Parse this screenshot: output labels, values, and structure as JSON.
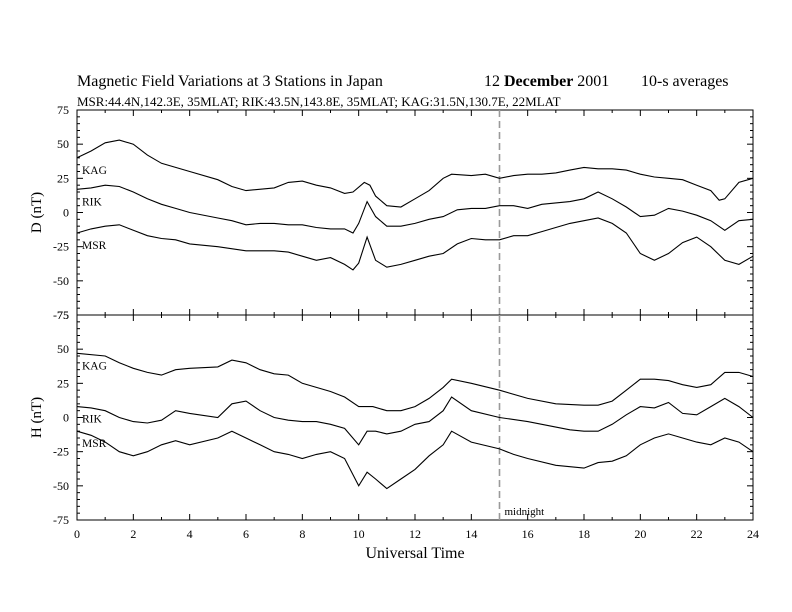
{
  "header": {
    "title": "Magnetic Field Variations at 3 Stations in Japan",
    "date_day": "12",
    "date_month": "December",
    "date_year": "2001",
    "averaging": "10-s averages",
    "subtitle": "MSR:44.4N,142.3E, 35MLAT;   RIK:43.5N,143.8E, 35MLAT;   KAG:31.5N,130.7E, 22MLAT"
  },
  "chart_data": [
    {
      "type": "line",
      "panel": "D",
      "ylabel": "D (nT)",
      "xlabel": "Universal Time",
      "xlim": [
        0,
        24
      ],
      "ylim": [
        -75,
        75
      ],
      "xticks": [
        0,
        2,
        4,
        6,
        8,
        10,
        12,
        14,
        16,
        18,
        20,
        22,
        24
      ],
      "yticks": [
        75,
        50,
        25,
        0,
        -25,
        -50,
        -75
      ],
      "annotation": {
        "x": 15,
        "style": "dashed-vertical"
      },
      "series": [
        {
          "name": "KAG",
          "x": [
            0,
            0.5,
            1,
            1.5,
            2,
            2.5,
            3,
            4,
            5,
            5.5,
            6,
            7,
            7.5,
            8,
            8.5,
            9,
            9.5,
            9.8,
            10.2,
            10.4,
            10.6,
            11,
            11.5,
            12,
            12.5,
            13,
            13.3,
            14,
            14.5,
            15,
            15.5,
            16,
            16.5,
            17,
            17.5,
            18,
            18.5,
            19,
            19.5,
            20,
            20.5,
            21,
            21.5,
            22,
            22.5,
            22.8,
            23,
            23.5,
            24
          ],
          "y": [
            40,
            45,
            51,
            53,
            50,
            42,
            36,
            30,
            24,
            19,
            16,
            18,
            22,
            23,
            20,
            18,
            14,
            15,
            22,
            20,
            12,
            5,
            4,
            10,
            16,
            25,
            28,
            27,
            28,
            25,
            27,
            28,
            28,
            29,
            31,
            33,
            32,
            32,
            31,
            28,
            26,
            25,
            24,
            20,
            16,
            9,
            10,
            22,
            25
          ]
        },
        {
          "name": "RIK",
          "x": [
            0,
            0.5,
            1,
            1.5,
            2,
            2.5,
            3,
            3.5,
            4,
            5,
            5.5,
            6,
            6.5,
            7,
            7.5,
            8,
            8.5,
            9,
            9.5,
            9.8,
            10,
            10.3,
            10.6,
            11,
            11.5,
            12,
            12.5,
            13,
            13.5,
            14,
            14.5,
            15,
            15.5,
            16,
            16.5,
            17,
            17.5,
            18,
            18.5,
            19,
            19.5,
            20,
            20.5,
            21,
            21.5,
            22,
            22.5,
            23,
            23.5,
            24
          ],
          "y": [
            17,
            18,
            20,
            19,
            15,
            10,
            6,
            3,
            0,
            -4,
            -6,
            -9,
            -8,
            -8,
            -9,
            -9,
            -11,
            -12,
            -12,
            -15,
            -8,
            8,
            -3,
            -10,
            -10,
            -8,
            -5,
            -3,
            2,
            3,
            3,
            5,
            5,
            3,
            6,
            7,
            8,
            10,
            15,
            10,
            4,
            -3,
            -2,
            3,
            1,
            -2,
            -6,
            -13,
            -6,
            -5
          ]
        },
        {
          "name": "MSR",
          "x": [
            0,
            0.5,
            1,
            1.5,
            2,
            2.5,
            3,
            3.5,
            4,
            5,
            6,
            7,
            7.5,
            8,
            8.5,
            9,
            9.5,
            9.8,
            10,
            10.3,
            10.6,
            11,
            11.5,
            12,
            12.5,
            13,
            13.5,
            14,
            14.5,
            15,
            15.5,
            16,
            16.5,
            17,
            17.5,
            18,
            18.5,
            19,
            19.5,
            20,
            20.5,
            21,
            21.5,
            22,
            22.5,
            23,
            23.5,
            24
          ],
          "y": [
            -15,
            -12,
            -10,
            -9,
            -13,
            -17,
            -19,
            -20,
            -23,
            -25,
            -28,
            -28,
            -29,
            -32,
            -35,
            -33,
            -38,
            -42,
            -37,
            -18,
            -35,
            -40,
            -38,
            -35,
            -32,
            -30,
            -23,
            -19,
            -20,
            -20,
            -17,
            -17,
            -14,
            -11,
            -8,
            -6,
            -4,
            -8,
            -15,
            -30,
            -35,
            -30,
            -22,
            -18,
            -25,
            -35,
            -38,
            -32
          ]
        }
      ]
    },
    {
      "type": "line",
      "panel": "H",
      "ylabel": "H (nT)",
      "xlabel": "Universal Time",
      "xlim": [
        0,
        24
      ],
      "ylim": [
        -75,
        75
      ],
      "xticks": [
        0,
        2,
        4,
        6,
        8,
        10,
        12,
        14,
        16,
        18,
        20,
        22,
        24
      ],
      "yticks": [
        75,
        50,
        25,
        0,
        -25,
        -50,
        -75
      ],
      "annotation": {
        "x": 15,
        "label": "midnight",
        "style": "dashed-vertical"
      },
      "series": [
        {
          "name": "KAG",
          "x": [
            0,
            1,
            1.5,
            2,
            2.5,
            3,
            3.5,
            4,
            5,
            5.5,
            6,
            6.5,
            7,
            7.5,
            8,
            8.5,
            9,
            9.5,
            10,
            10.5,
            11,
            11.5,
            12,
            12.5,
            13,
            13.3,
            14,
            15,
            16,
            17,
            18,
            18.5,
            19,
            19.5,
            20,
            20.5,
            21,
            21.5,
            22,
            22.5,
            23,
            23.5,
            24
          ],
          "y": [
            47,
            45,
            40,
            36,
            33,
            31,
            35,
            36,
            37,
            42,
            40,
            35,
            32,
            31,
            25,
            22,
            19,
            15,
            8,
            8,
            5,
            5,
            8,
            14,
            22,
            28,
            25,
            20,
            14,
            10,
            9,
            9,
            12,
            20,
            28,
            28,
            27,
            24,
            22,
            24,
            33,
            33,
            30
          ]
        },
        {
          "name": "RIK",
          "x": [
            0,
            0.5,
            1,
            1.5,
            2,
            2.5,
            3,
            3.5,
            4,
            5,
            5.5,
            6,
            6.5,
            7,
            7.5,
            8,
            8.5,
            9,
            9.5,
            10,
            10.3,
            10.6,
            11,
            11.5,
            12,
            12.5,
            13,
            13.3,
            14,
            15,
            16,
            17,
            17.5,
            18,
            18.5,
            19,
            19.5,
            20,
            20.5,
            21,
            21.5,
            22,
            22.5,
            23,
            23.5,
            24
          ],
          "y": [
            8,
            7,
            5,
            0,
            -3,
            -4,
            -2,
            5,
            3,
            0,
            10,
            12,
            5,
            0,
            -2,
            -3,
            -3,
            -5,
            -8,
            -20,
            -10,
            -10,
            -12,
            -10,
            -5,
            -3,
            5,
            15,
            5,
            0,
            -3,
            -7,
            -9,
            -10,
            -10,
            -5,
            2,
            8,
            7,
            11,
            3,
            2,
            8,
            14,
            8,
            0
          ]
        },
        {
          "name": "MSR",
          "x": [
            0,
            0.5,
            1,
            1.5,
            2,
            2.5,
            3,
            3.5,
            4,
            5,
            5.5,
            6,
            6.5,
            7,
            7.5,
            8,
            8.5,
            9,
            9.5,
            10,
            10.3,
            10.6,
            11,
            11.5,
            12,
            12.5,
            13,
            13.3,
            14,
            15,
            15.5,
            16,
            17,
            17.5,
            18,
            18.5,
            19,
            19.5,
            20,
            20.5,
            21,
            21.5,
            22,
            22.5,
            23,
            23.5,
            24
          ],
          "y": [
            -10,
            -13,
            -18,
            -25,
            -28,
            -25,
            -20,
            -17,
            -20,
            -15,
            -10,
            -15,
            -20,
            -25,
            -27,
            -30,
            -27,
            -25,
            -30,
            -50,
            -40,
            -45,
            -52,
            -45,
            -38,
            -28,
            -20,
            -10,
            -18,
            -23,
            -27,
            -30,
            -35,
            -36,
            -37,
            -33,
            -32,
            -28,
            -20,
            -15,
            -12,
            -15,
            -18,
            -20,
            -15,
            -18,
            -25
          ]
        }
      ]
    }
  ]
}
